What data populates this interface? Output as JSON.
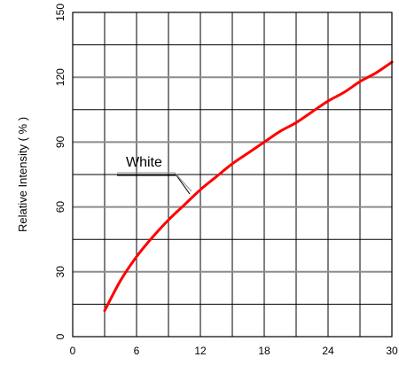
{
  "chart_data": {
    "type": "line",
    "title": "",
    "xlabel": "",
    "ylabel": "Relative Intensity ( % )",
    "xlim": [
      0,
      30
    ],
    "ylim": [
      0,
      150
    ],
    "x_ticks": [
      "0",
      "6",
      "12",
      "18",
      "24",
      "30"
    ],
    "y_ticks": [
      "0",
      "30",
      "60",
      "90",
      "120",
      "150"
    ],
    "grid": true,
    "series": [
      {
        "name": "White",
        "color": "#ff0000",
        "x": [
          3,
          4.5,
          6,
          7.5,
          9,
          10.5,
          12,
          13.5,
          15,
          16.5,
          18,
          19.5,
          21,
          22.5,
          24,
          25.5,
          27,
          28.5,
          30
        ],
        "y": [
          12,
          26,
          37,
          46,
          54,
          61,
          68,
          74,
          80,
          85,
          90,
          95,
          99,
          104,
          109,
          113,
          118,
          122,
          127
        ]
      }
    ],
    "annotation": {
      "text": "White",
      "points_to": [
        11,
        66
      ]
    }
  }
}
